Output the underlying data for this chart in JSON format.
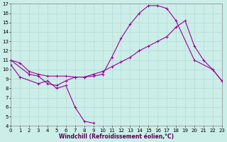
{
  "xlabel": "Windchill (Refroidissement éolien,°C)",
  "bg_color": "#cceee8",
  "grid_color": "#aadddd",
  "line_color": "#990099",
  "xlim": [
    0,
    23
  ],
  "ylim": [
    4,
    17
  ],
  "xticks": [
    0,
    1,
    2,
    3,
    4,
    5,
    6,
    7,
    8,
    9,
    10,
    11,
    12,
    13,
    14,
    15,
    16,
    17,
    18,
    19,
    20,
    21,
    22,
    23
  ],
  "yticks": [
    4,
    5,
    6,
    7,
    8,
    9,
    10,
    11,
    12,
    13,
    14,
    15,
    16,
    17
  ],
  "series1_x": [
    0,
    1,
    2,
    3,
    4,
    5,
    6,
    7,
    8,
    9,
    10,
    11,
    12,
    13,
    14,
    15,
    16,
    17,
    18,
    19,
    20,
    21,
    22,
    23
  ],
  "series1_y": [
    11,
    10.7,
    9.8,
    9.5,
    9.3,
    9.3,
    9.3,
    9.2,
    9.2,
    9.5,
    9.8,
    10.3,
    10.8,
    11.3,
    12.0,
    12.5,
    13.0,
    13.5,
    14.5,
    15.2,
    12.5,
    11.0,
    10.0,
    8.8
  ],
  "series2_x": [
    0,
    2,
    3,
    4,
    5,
    6,
    7,
    8,
    9,
    10,
    11,
    12,
    13,
    14,
    15,
    16,
    17,
    18,
    20,
    22,
    23
  ],
  "series2_y": [
    11,
    9.5,
    9.3,
    8.5,
    8.3,
    8.8,
    9.2,
    9.2,
    9.3,
    9.5,
    11.3,
    13.3,
    14.8,
    16.0,
    16.8,
    16.8,
    16.5,
    15.2,
    11.0,
    10.0,
    8.8
  ],
  "series3_x": [
    0,
    1,
    3,
    4,
    5,
    6,
    7,
    8,
    9
  ],
  "series3_y": [
    10.5,
    9.2,
    8.5,
    8.8,
    8.0,
    8.3,
    6.0,
    4.5,
    4.3
  ]
}
